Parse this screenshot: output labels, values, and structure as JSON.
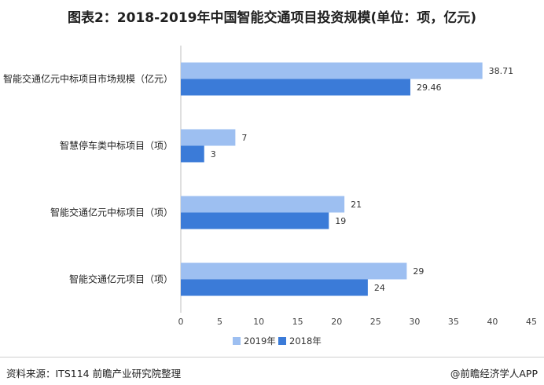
{
  "title": "图表2：2018-2019年中国智能交通项目投资规模(单位：项，亿元)",
  "footer": {
    "source": "资料来源：ITS114 前瞻产业研究院整理",
    "credit": "@前瞻经济学人APP"
  },
  "colors": {
    "series_2019": "#9dbff1",
    "series_2018": "#3b7bd8"
  },
  "chart_data": {
    "type": "bar",
    "orientation": "horizontal",
    "title": "图表2：2018-2019年中国智能交通项目投资规模(单位：项，亿元)",
    "categories": [
      "智能交通亿元中标项目市场规模（亿元）",
      "智慧停车类中标项目（项）",
      "智能交通亿元中标项目（项）",
      "智能交通亿元项目（项）"
    ],
    "series": [
      {
        "name": "2019年",
        "values": [
          38.71,
          7,
          21,
          29
        ]
      },
      {
        "name": "2018年",
        "values": [
          29.46,
          3,
          19,
          24
        ]
      }
    ],
    "value_labels": [
      [
        "38.71",
        "7",
        "21",
        "29"
      ],
      [
        "29.46",
        "3",
        "19",
        "24"
      ]
    ],
    "xlim": [
      0,
      45
    ],
    "xticks": [
      0,
      5,
      10,
      15,
      20,
      25,
      30,
      35,
      40,
      45
    ],
    "xlabel": "",
    "ylabel": "",
    "grid": false,
    "legend_position": "bottom"
  }
}
